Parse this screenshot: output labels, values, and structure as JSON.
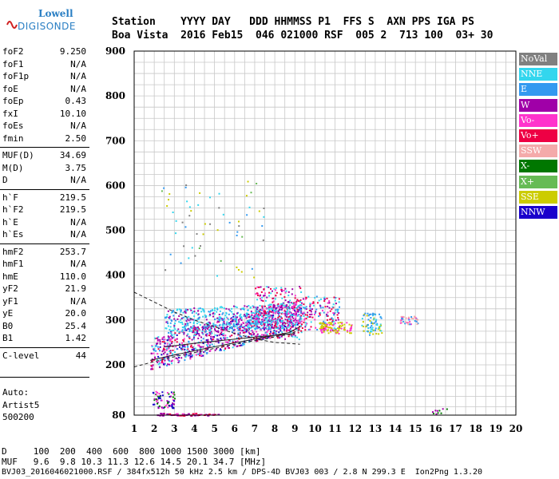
{
  "logo": {
    "line1": "Lowell",
    "line2": "DIGISONDE"
  },
  "header": {
    "row1": "Station    YYYY DAY   DDD HHMMSS P1  FFS S  AXN PPS IGA PS",
    "row2": "Boa Vista  2016 Feb15  046 021000 RSF  005 2  713 100  03+ 30"
  },
  "params": [
    {
      "k": "foF2",
      "v": "9.250"
    },
    {
      "k": "foF1",
      "v": "N/A"
    },
    {
      "k": "foF1p",
      "v": "N/A"
    },
    {
      "k": "foE",
      "v": "N/A"
    },
    {
      "k": "foEp",
      "v": "0.43"
    },
    {
      "k": "fxI",
      "v": "10.10"
    },
    {
      "k": "foEs",
      "v": "N/A"
    },
    {
      "k": "fmin",
      "v": "2.50"
    },
    {
      "k": "MUF(D)",
      "v": "34.69"
    },
    {
      "k": "M(D)",
      "v": "3.75"
    },
    {
      "k": "D",
      "v": "N/A"
    },
    {
      "k": "h`F",
      "v": "219.5"
    },
    {
      "k": "h`F2",
      "v": "219.5"
    },
    {
      "k": "h`E",
      "v": "N/A"
    },
    {
      "k": "h`Es",
      "v": "N/A"
    },
    {
      "k": "hmF2",
      "v": "253.7"
    },
    {
      "k": "hmF1",
      "v": "N/A"
    },
    {
      "k": "hmE",
      "v": "110.0"
    },
    {
      "k": "yF2",
      "v": "21.9"
    },
    {
      "k": "yF1",
      "v": "N/A"
    },
    {
      "k": "yE",
      "v": "20.0"
    },
    {
      "k": "B0",
      "v": "25.4"
    },
    {
      "k": "B1",
      "v": "1.42"
    },
    {
      "k": "C-level",
      "v": "44"
    }
  ],
  "auto": {
    "line1": "Auto:",
    "line2": "Artist5",
    "line3": "500200"
  },
  "legend": [
    {
      "label": "NoVal",
      "color": "#808080"
    },
    {
      "label": "NNE",
      "color": "#33d6ee"
    },
    {
      "label": "E",
      "color": "#3399f0"
    },
    {
      "label": "W",
      "color": "#a000a8"
    },
    {
      "label": "Vo-",
      "color": "#ff33cc"
    },
    {
      "label": "Vo+",
      "color": "#ee0044"
    },
    {
      "label": "SSW",
      "color": "#f4aaaa"
    },
    {
      "label": "X-",
      "color": "#007700"
    },
    {
      "label": "X+",
      "color": "#66bb55"
    },
    {
      "label": "SSE",
      "color": "#cccc00"
    },
    {
      "label": "NNW",
      "color": "#1a00cc"
    }
  ],
  "chart_data": {
    "type": "scatter",
    "x_ticks": [
      "1",
      "2",
      "3",
      "4",
      "5",
      "6",
      "7",
      "8",
      "9",
      "10",
      "11",
      "12",
      "13",
      "14",
      "15",
      "16",
      "17",
      "18",
      "19",
      "20"
    ],
    "y_ticks": [
      "80",
      "200",
      "300",
      "400",
      "500",
      "600",
      "700",
      "800",
      "900"
    ],
    "xlim": [
      1,
      20
    ],
    "ylim": [
      80,
      900
    ],
    "grid": true,
    "xunit": "MHz",
    "yunit": "km"
  },
  "footer": {
    "row1": "D     100  200  400  600  800 1000 1500 3000 [km]",
    "row2": "MUF   9.6  9.8 10.3 11.3 12.6 14.5 20.1 34.7 [MHz]",
    "row3": "BVJ03_2016046021000.RSF / 384fx512h 50 kHz 2.5 km / DPS-4D BVJ03 003 / 2.8 N 299.3 E  Ion2Png 1.3.20"
  }
}
